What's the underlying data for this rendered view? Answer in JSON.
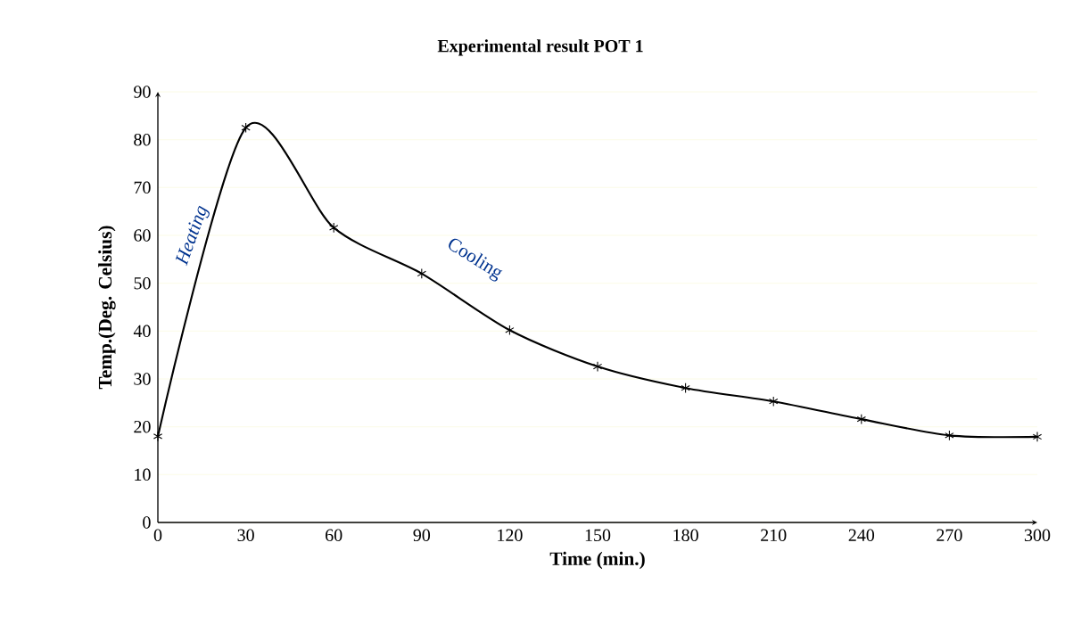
{
  "chart_data": {
    "type": "line",
    "title": "Experimental result POT 1",
    "xlabel": "Time (min.)",
    "ylabel": "Temp.(Deg. Celsius)",
    "x": [
      0,
      30,
      60,
      90,
      120,
      150,
      180,
      210,
      240,
      270,
      300
    ],
    "series": [
      {
        "color": "#000000",
        "values": [
          18,
          82.5,
          61.6,
          52,
          40.2,
          32.6,
          28.1,
          25.3,
          21.6,
          18.2,
          17.9
        ]
      }
    ],
    "xlim": [
      0,
      300
    ],
    "xticks": [
      0,
      30,
      60,
      90,
      120,
      150,
      180,
      210,
      240,
      270,
      300
    ],
    "ylim": [
      0,
      90
    ],
    "yticks": [
      0,
      10,
      20,
      30,
      40,
      50,
      60,
      70,
      80,
      90
    ],
    "grid": "y",
    "marker": "cross",
    "line_style": "solid",
    "annotations": [
      "Heating",
      "Cooling"
    ]
  }
}
